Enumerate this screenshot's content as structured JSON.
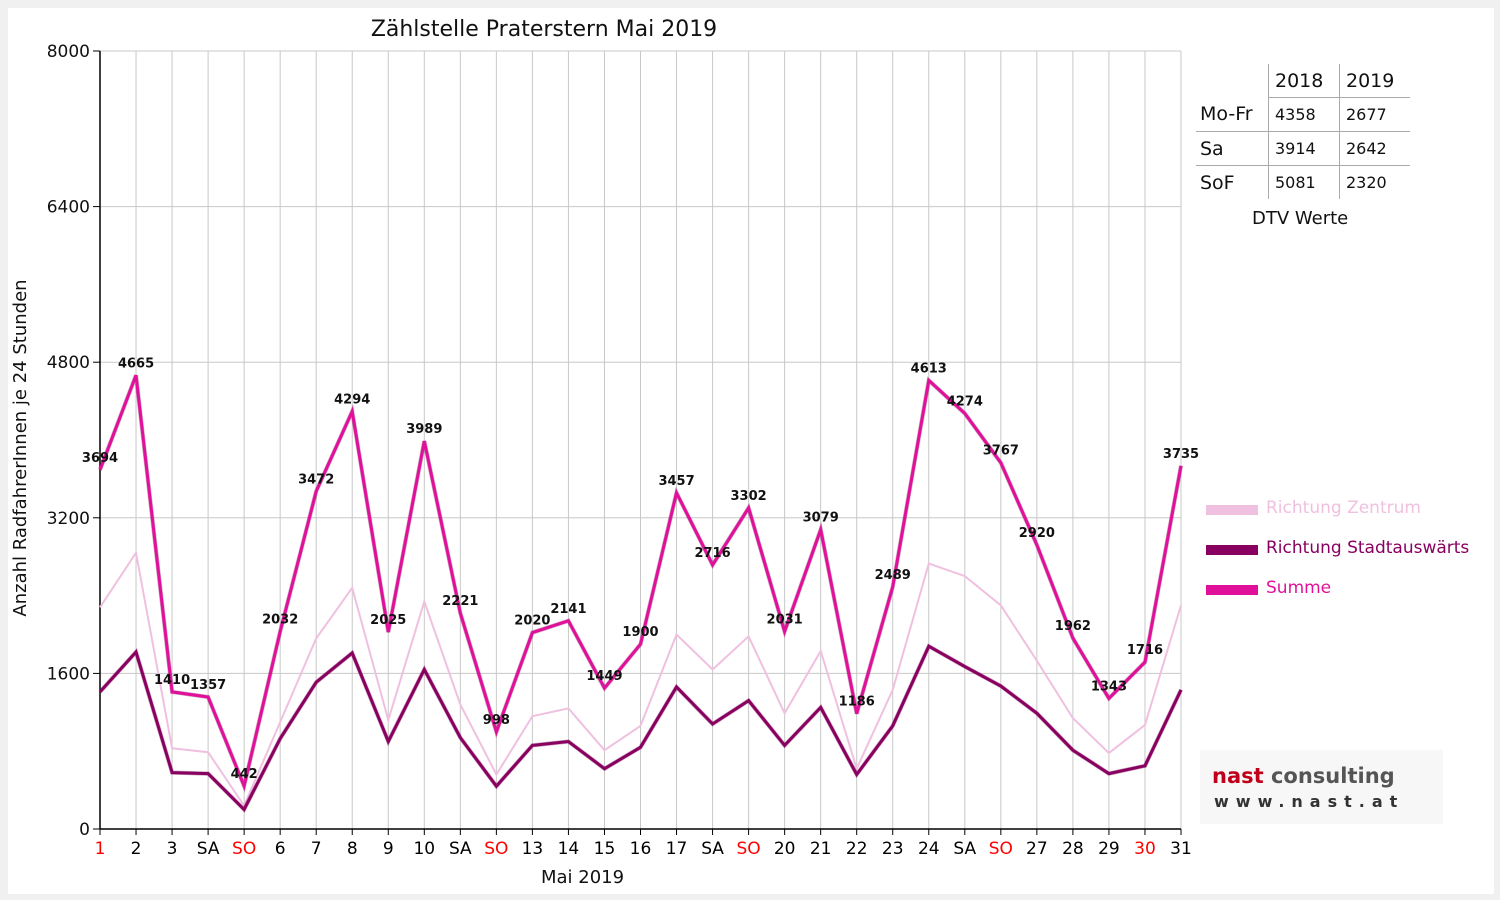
{
  "chart_data": {
    "type": "line",
    "title": "Zählstelle Praterstern Mai 2019",
    "xlabel": "Mai 2019",
    "ylabel": "Anzahl RadfahrerInnen je 24 Stunden",
    "ylim": [
      0,
      8000
    ],
    "yticks": [
      "0",
      "1600",
      "3200",
      "4800",
      "6400",
      "8000"
    ],
    "grid": true,
    "legend_position": "right",
    "categories": [
      "1",
      "2",
      "3",
      "SA",
      "SO",
      "6",
      "7",
      "8",
      "9",
      "10",
      "SA",
      "SO",
      "13",
      "14",
      "15",
      "16",
      "17",
      "SA",
      "SO",
      "20",
      "21",
      "22",
      "23",
      "24",
      "SA",
      "SO",
      "27",
      "28",
      "29",
      "30",
      "31"
    ],
    "category_colors": [
      "#ff0000",
      "#000000",
      "#000000",
      "#000000",
      "#ff0000",
      "#000000",
      "#000000",
      "#000000",
      "#000000",
      "#000000",
      "#000000",
      "#ff0000",
      "#000000",
      "#000000",
      "#000000",
      "#000000",
      "#000000",
      "#000000",
      "#ff0000",
      "#000000",
      "#000000",
      "#000000",
      "#000000",
      "#000000",
      "#000000",
      "#ff0000",
      "#000000",
      "#000000",
      "#000000",
      "#ff0000",
      "#000000"
    ],
    "series": [
      {
        "name": "Richtung Zentrum",
        "color": "#f0c0e0",
        "values": [
          2280,
          2840,
          830,
          790,
          240,
          1100,
          1960,
          2480,
          1120,
          2340,
          1280,
          560,
          1160,
          1240,
          810,
          1060,
          2000,
          1640,
          1980,
          1190,
          1830,
          620,
          1430,
          2730,
          2600,
          2300,
          1730,
          1140,
          780,
          1070,
          2300
        ]
      },
      {
        "name": "Richtung Stadtauswärts",
        "color": "#880060",
        "values": [
          1410,
          1820,
          580,
          570,
          200,
          930,
          1510,
          1810,
          900,
          1640,
          940,
          440,
          860,
          900,
          620,
          840,
          1460,
          1080,
          1320,
          860,
          1250,
          560,
          1060,
          1880,
          1670,
          1470,
          1190,
          810,
          570,
          650,
          1430
        ]
      },
      {
        "name": "Summe",
        "color": "#e0109a",
        "values": [
          3694,
          4665,
          1410,
          1357,
          442,
          2032,
          3472,
          4294,
          2025,
          3989,
          2221,
          998,
          2020,
          2141,
          1449,
          1900,
          3457,
          2716,
          3302,
          2031,
          3079,
          1186,
          2489,
          4613,
          4274,
          3767,
          2920,
          1962,
          1343,
          1716,
          3735
        ]
      }
    ],
    "data_labels": [
      "3694",
      "4665",
      "1410",
      "1357",
      "442",
      "2032",
      "3472",
      "4294",
      "2025",
      "3989",
      "2221",
      "998",
      "2020",
      "2141",
      "1449",
      "1900",
      "3457",
      "2716",
      "3302",
      "2031",
      "3079",
      "1186",
      "2489",
      "4613",
      "4274",
      "3767",
      "2920",
      "1962",
      "1343",
      "1716",
      "3735"
    ]
  },
  "dtv_table": {
    "caption": "DTV Werte",
    "headers": [
      "2018",
      "2019"
    ],
    "rows": [
      {
        "label": "Mo-Fr",
        "values": [
          "4358",
          "2677"
        ]
      },
      {
        "label": "Sa",
        "values": [
          "3914",
          "2642"
        ]
      },
      {
        "label": "SoF",
        "values": [
          "5081",
          "2320"
        ]
      }
    ]
  },
  "logo": {
    "name_part1": "nast",
    "name_part2": " consulting",
    "url": "www.nast.at"
  }
}
